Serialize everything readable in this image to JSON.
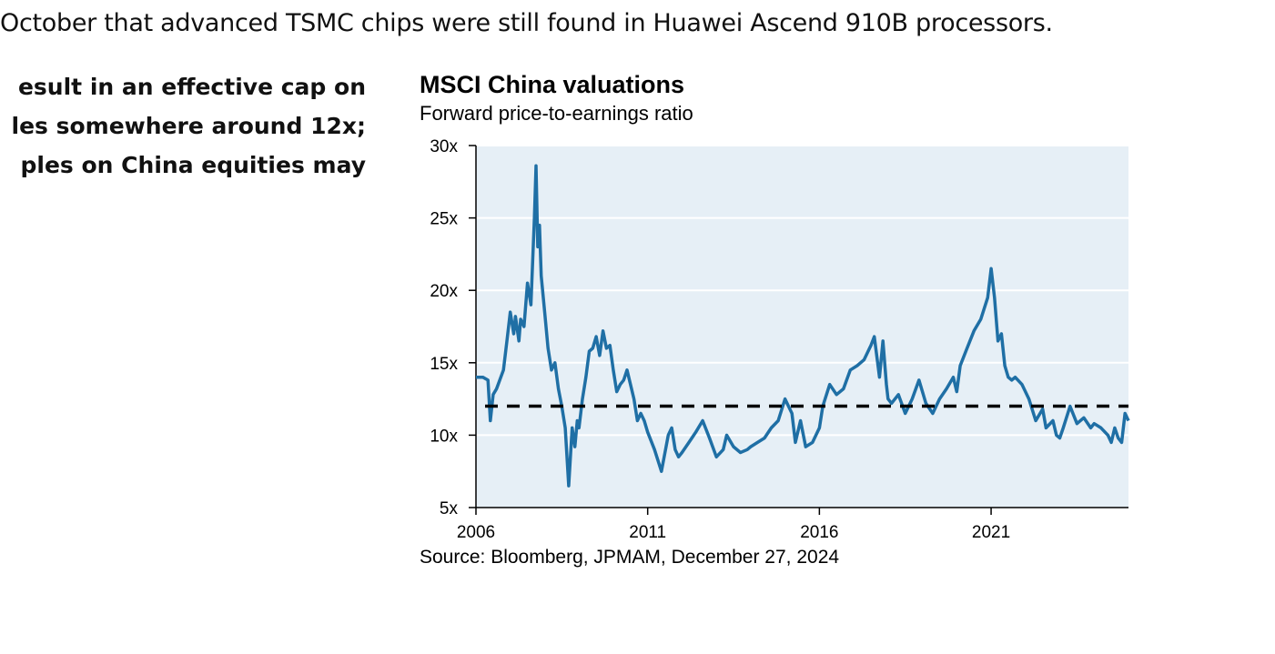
{
  "article": {
    "top_line": "October that advanced TSMC chips were still found in Huawei Ascend 910B processors.",
    "left_lines": [
      "esult in an effective cap on",
      "les somewhere around 12x;",
      "ples on China equities may"
    ]
  },
  "chart_data": {
    "type": "line",
    "title": "MSCI China valuations",
    "subtitle": "Forward price-to-earnings ratio",
    "source": "Source: Bloomberg, JPMAM, December 27, 2024",
    "x_axis": {
      "range": [
        2006.0,
        2025.0
      ],
      "ticks": [
        2006,
        2011,
        2016,
        2021
      ],
      "tick_labels": [
        "2006",
        "2011",
        "2016",
        "2021"
      ]
    },
    "y_axis": {
      "range": [
        5,
        30
      ],
      "ticks": [
        5,
        10,
        15,
        20,
        25,
        30
      ],
      "tick_labels": [
        "5x",
        "10x",
        "15x",
        "20x",
        "25x",
        "30x"
      ]
    },
    "grid": "horizontal",
    "background_color": "#e6eff6",
    "series": [
      {
        "color": "#1f6fa5",
        "x": [
          2006.0,
          2006.2,
          2006.35,
          2006.42,
          2006.5,
          2006.6,
          2006.8,
          2006.9,
          2007.0,
          2007.1,
          2007.15,
          2007.25,
          2007.3,
          2007.4,
          2007.5,
          2007.6,
          2007.7,
          2007.75,
          2007.8,
          2007.85,
          2007.9,
          2008.0,
          2008.1,
          2008.2,
          2008.3,
          2008.4,
          2008.5,
          2008.6,
          2008.7,
          2008.8,
          2008.88,
          2008.95,
          2009.0,
          2009.1,
          2009.2,
          2009.3,
          2009.4,
          2009.5,
          2009.6,
          2009.7,
          2009.8,
          2009.9,
          2010.0,
          2010.1,
          2010.2,
          2010.3,
          2010.4,
          2010.5,
          2010.6,
          2010.7,
          2010.8,
          2010.9,
          2011.0,
          2011.2,
          2011.4,
          2011.6,
          2011.7,
          2011.8,
          2011.9,
          2012.0,
          2012.2,
          2012.4,
          2012.6,
          2012.8,
          2013.0,
          2013.2,
          2013.3,
          2013.5,
          2013.7,
          2013.9,
          2014.0,
          2014.2,
          2014.4,
          2014.6,
          2014.8,
          2015.0,
          2015.2,
          2015.3,
          2015.45,
          2015.6,
          2015.8,
          2016.0,
          2016.1,
          2016.3,
          2016.5,
          2016.7,
          2016.9,
          2017.1,
          2017.3,
          2017.5,
          2017.6,
          2017.75,
          2017.85,
          2017.95,
          2018.0,
          2018.1,
          2018.3,
          2018.5,
          2018.7,
          2018.9,
          2019.1,
          2019.3,
          2019.5,
          2019.7,
          2019.9,
          2020.0,
          2020.1,
          2020.3,
          2020.5,
          2020.7,
          2020.9,
          2021.0,
          2021.1,
          2021.2,
          2021.3,
          2021.4,
          2021.5,
          2021.6,
          2021.7,
          2021.9,
          2022.1,
          2022.3,
          2022.5,
          2022.6,
          2022.8,
          2022.9,
          2023.0,
          2023.1,
          2023.3,
          2023.5,
          2023.7,
          2023.9,
          2024.0,
          2024.2,
          2024.4,
          2024.5,
          2024.6,
          2024.7,
          2024.8,
          2024.9,
          2025.0
        ],
        "y": [
          14.0,
          14.0,
          13.8,
          11.0,
          12.8,
          13.2,
          14.5,
          16.5,
          18.5,
          17.0,
          18.2,
          16.5,
          18.0,
          17.5,
          20.5,
          19.0,
          25.0,
          28.6,
          23.0,
          24.5,
          21.0,
          18.5,
          16.0,
          14.5,
          15.0,
          13.2,
          12.0,
          10.5,
          6.5,
          10.5,
          9.2,
          11.0,
          10.5,
          12.5,
          14.0,
          15.8,
          16.0,
          16.8,
          15.5,
          17.2,
          16.0,
          16.2,
          14.5,
          13.0,
          13.5,
          13.8,
          14.5,
          13.5,
          12.5,
          11.0,
          11.5,
          11.0,
          10.2,
          9.0,
          7.5,
          10.0,
          10.5,
          9.0,
          8.5,
          8.8,
          9.5,
          10.2,
          11.0,
          9.8,
          8.5,
          9.0,
          10.0,
          9.2,
          8.8,
          9.0,
          9.2,
          9.5,
          9.8,
          10.5,
          11.0,
          12.5,
          11.5,
          9.5,
          11.0,
          9.2,
          9.5,
          10.5,
          12.0,
          13.5,
          12.8,
          13.2,
          14.5,
          14.8,
          15.2,
          16.2,
          16.8,
          14.0,
          16.5,
          13.5,
          12.5,
          12.2,
          12.8,
          11.5,
          12.5,
          13.8,
          12.2,
          11.5,
          12.5,
          13.2,
          14.0,
          13.0,
          14.8,
          16.0,
          17.2,
          18.0,
          19.5,
          21.5,
          19.5,
          16.5,
          17.0,
          14.8,
          14.0,
          13.8,
          14.0,
          13.5,
          12.5,
          11.0,
          11.8,
          10.5,
          11.0,
          10.0,
          9.8,
          10.5,
          12.0,
          10.8,
          11.2,
          10.5,
          10.8,
          10.5,
          10.0,
          9.5,
          10.5,
          9.8,
          9.5,
          11.5,
          11.0
        ]
      },
      {
        "type": "hline",
        "y": 12,
        "color": "#000000",
        "dash": "dashed"
      }
    ]
  }
}
